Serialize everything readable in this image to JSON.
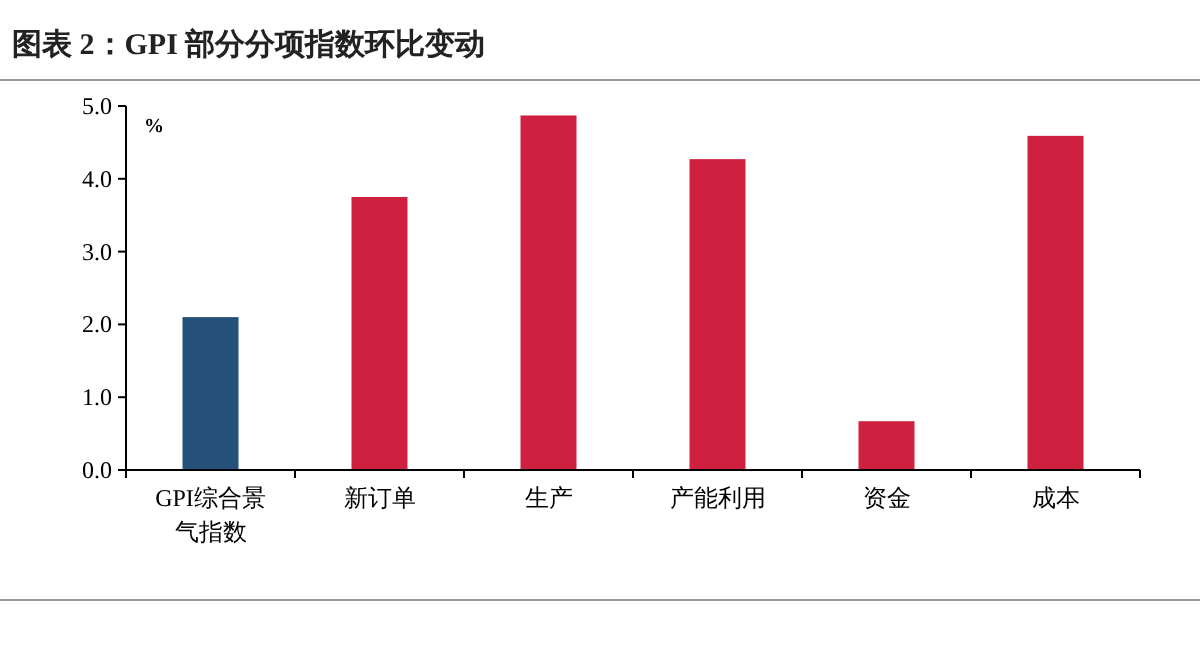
{
  "chart_data": {
    "type": "bar",
    "title": "图表 2：GPI 部分分项指数环比变动",
    "ylabel": "%",
    "categories": [
      "GPI综合景气指数",
      "新订单",
      "生产",
      "产能利用",
      "资金",
      "成本"
    ],
    "values": [
      2.1,
      3.75,
      4.87,
      4.27,
      0.67,
      4.59
    ],
    "colors": [
      "#25507a",
      "#d02040",
      "#d02040",
      "#d02040",
      "#d02040",
      "#d02040"
    ],
    "ylim": [
      0,
      5
    ],
    "yticks": [
      {
        "value": 0,
        "label": "0.0"
      },
      {
        "value": 1,
        "label": "1.0"
      },
      {
        "value": 2,
        "label": "2.0"
      },
      {
        "value": 3,
        "label": "3.0"
      },
      {
        "value": 4,
        "label": "4.0"
      },
      {
        "value": 5,
        "label": "5.0"
      }
    ],
    "grid": false
  }
}
